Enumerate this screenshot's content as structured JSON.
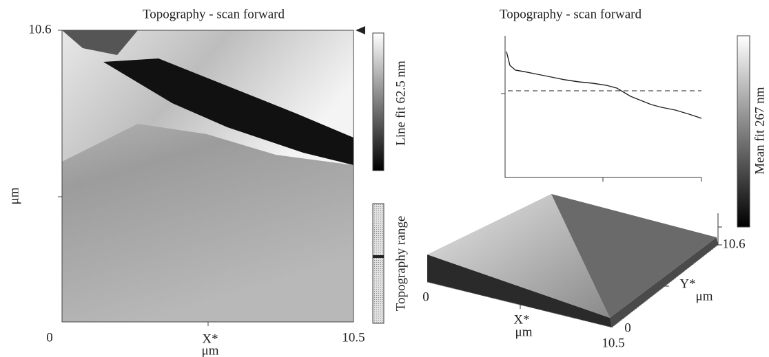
{
  "left_panel": {
    "title": "Topography - scan forward",
    "y_max_label": "10.6",
    "y_unit": "μm",
    "x_min_label": "0",
    "x_label": "X*",
    "x_unit": "μm",
    "x_max_label": "10.5",
    "colorbar_label": "Line fit 62.5 nm",
    "range_label": "Topography range"
  },
  "right_panel": {
    "title": "Topography - scan forward",
    "colorbar_label": "Mean fit 267 nm",
    "view3d": {
      "x_min_label": "0",
      "x_label": "X*",
      "x_unit": "μm",
      "x_max_label": "10.5",
      "y_min_label": "0",
      "y_label": "Y*",
      "y_unit": "μm",
      "y_max_label": "10.6"
    }
  }
}
